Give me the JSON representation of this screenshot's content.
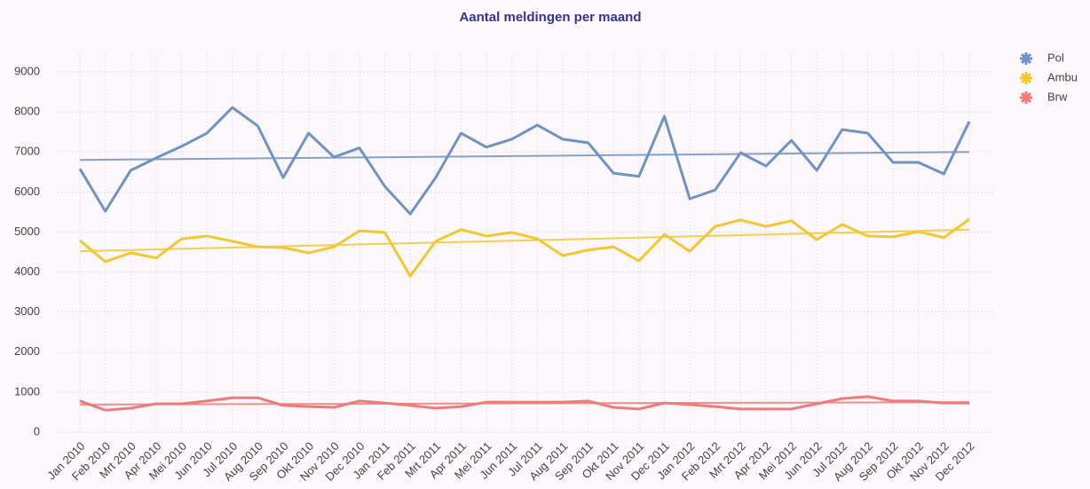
{
  "chart_data": {
    "type": "line",
    "title": "Aantal meldingen per maand",
    "categories": [
      "Jan 2010",
      "Feb 2010",
      "Mrt 2010",
      "Apr 2010",
      "Mei 2010",
      "Jun 2010",
      "Jul 2010",
      "Aug 2010",
      "Sep 2010",
      "Okt 2010",
      "Nov 2010",
      "Dec 2010",
      "Jan 2011",
      "Feb 2011",
      "Mrt 2011",
      "Apr 2011",
      "Mei 2011",
      "Jun 2011",
      "Jul 2011",
      "Aug 2011",
      "Sep 2011",
      "Okt 2011",
      "Nov 2011",
      "Dec 2011",
      "Jan 2012",
      "Feb 2012",
      "Mrt 2012",
      "Apr 2012",
      "Mei 2012",
      "Jun 2012",
      "Jul 2012",
      "Aug 2012",
      "Sep 2012",
      "Okt 2012",
      "Nov 2012",
      "Dec 2012"
    ],
    "series": [
      {
        "name": "Pol",
        "color": "#6f93c6",
        "trend": [
          6800,
          7000
        ],
        "values": [
          6580,
          5520,
          6540,
          6850,
          7140,
          7470,
          8110,
          7650,
          6360,
          7470,
          6870,
          7100,
          6140,
          5450,
          6360,
          7470,
          7120,
          7320,
          7670,
          7320,
          7230,
          6470,
          6390,
          7890,
          5830,
          6050,
          6980,
          6650,
          7290,
          6540,
          7560,
          7470,
          6740,
          6740,
          6450,
          7760
        ]
      },
      {
        "name": "Ambu",
        "color": "#f2c832",
        "trend": [
          4520,
          5060
        ],
        "values": [
          4790,
          4260,
          4480,
          4350,
          4830,
          4900,
          4770,
          4630,
          4610,
          4480,
          4630,
          5030,
          4990,
          3900,
          4770,
          5060,
          4900,
          4990,
          4830,
          4410,
          4550,
          4630,
          4280,
          4940,
          4520,
          5140,
          5300,
          5140,
          5280,
          4810,
          5190,
          4900,
          4880,
          5010,
          4860,
          5320
        ]
      },
      {
        "name": "Brw",
        "color": "#f07a7a",
        "trend": [
          690,
          750
        ],
        "values": [
          780,
          550,
          600,
          710,
          710,
          780,
          860,
          860,
          670,
          640,
          620,
          780,
          730,
          670,
          600,
          640,
          750,
          750,
          750,
          750,
          780,
          620,
          580,
          730,
          690,
          640,
          580,
          580,
          580,
          710,
          840,
          890,
          780,
          780,
          730,
          730
        ]
      }
    ],
    "ylim": [
      0,
      9000
    ],
    "yticks": [
      0,
      1000,
      2000,
      3000,
      4000,
      5000,
      6000,
      7000,
      8000,
      9000
    ],
    "grid": true,
    "legend": "top-right"
  }
}
